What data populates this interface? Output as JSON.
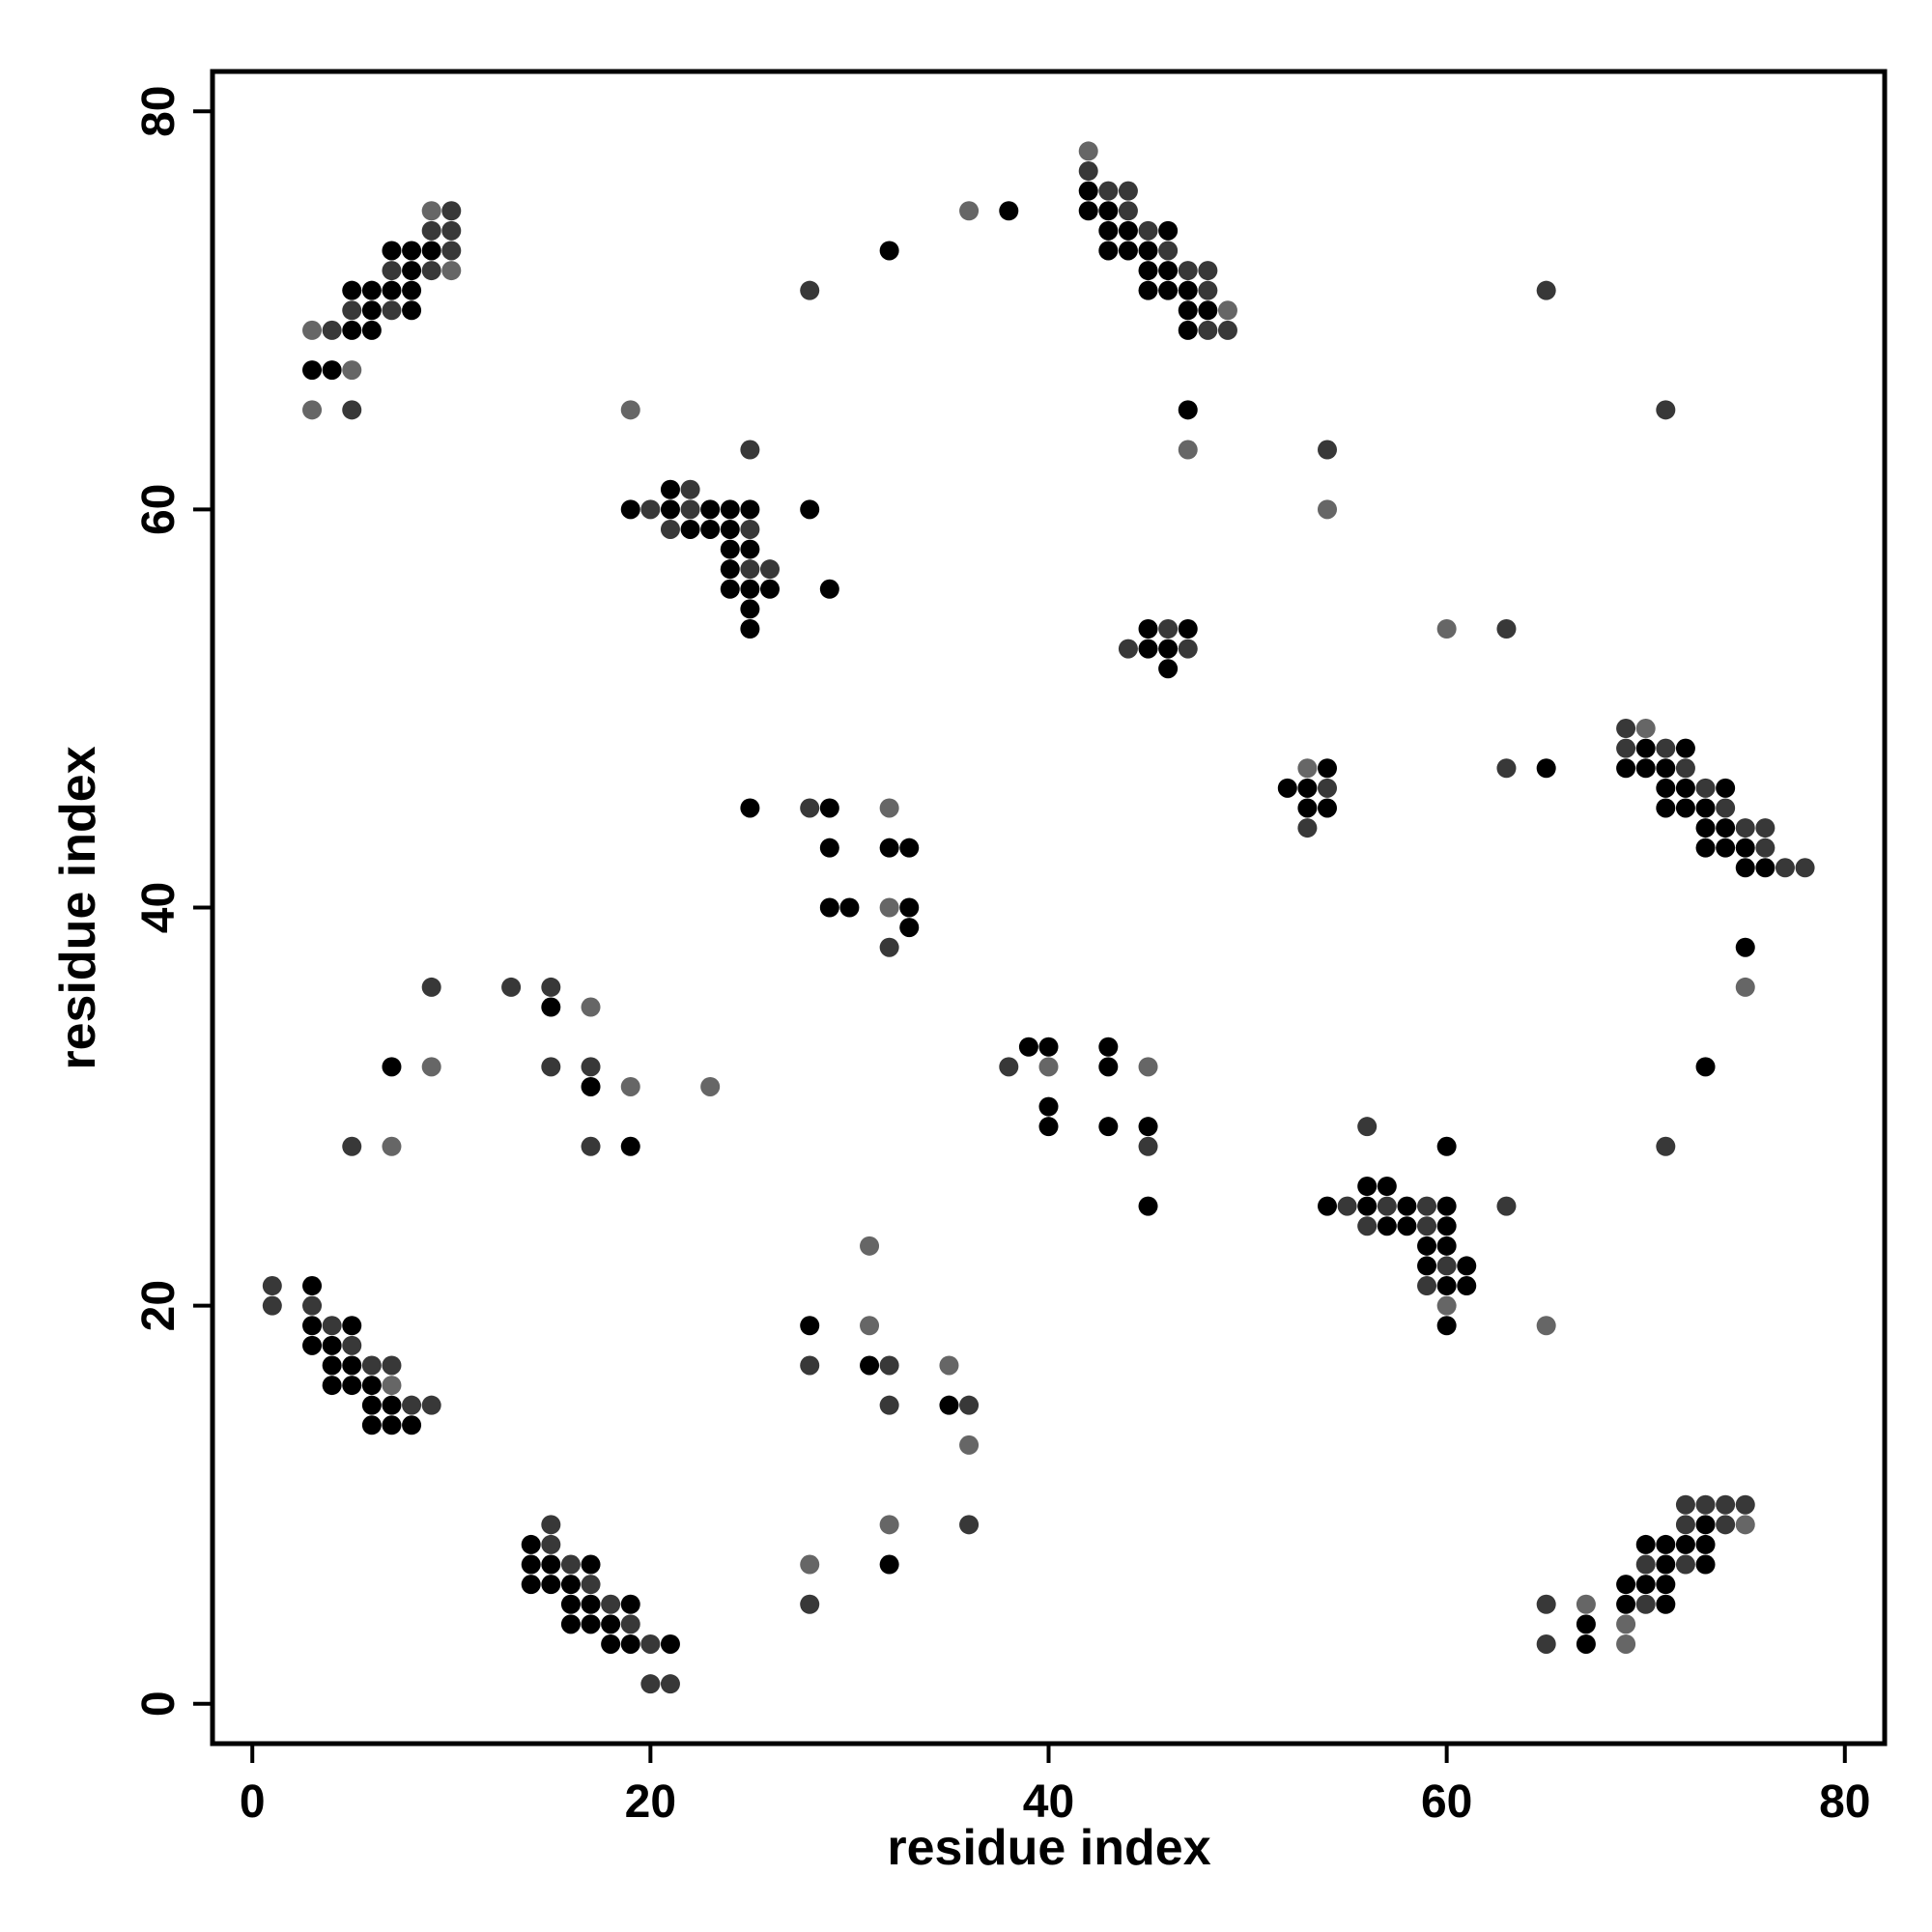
{
  "chart_data": {
    "type": "scatter",
    "x_label": "residue index",
    "y_label": "residue index",
    "xlim": [
      -2,
      82
    ],
    "ylim": [
      -2,
      82
    ],
    "xticks": [
      0,
      20,
      40,
      60,
      80
    ],
    "yticks": [
      0,
      20,
      40,
      60,
      80
    ],
    "grid": false,
    "series": [
      {
        "color": "#000000",
        "x": [
          7,
          8,
          9,
          8,
          5,
          6,
          7,
          8,
          6,
          8,
          5,
          6,
          3,
          4,
          32,
          38,
          42,
          42,
          43,
          43,
          44,
          46,
          43,
          44,
          45,
          45,
          46,
          45,
          46,
          47,
          47,
          48,
          47,
          47,
          21,
          19,
          21,
          23,
          24,
          25,
          28,
          22,
          23,
          24,
          24,
          25,
          24,
          24,
          25,
          26,
          29,
          25,
          25,
          45,
          47,
          45,
          46,
          46,
          54,
          52,
          53,
          53,
          54,
          65,
          70,
          72,
          69,
          70,
          71,
          71,
          72,
          74,
          71,
          72,
          73,
          73,
          74,
          73,
          74,
          75,
          75,
          76,
          75,
          25,
          29,
          29,
          32,
          33,
          29,
          30,
          33,
          33,
          15,
          7,
          17,
          19,
          39,
          40,
          43,
          43,
          40,
          40,
          43,
          45,
          45,
          73,
          60,
          56,
          57,
          54,
          56,
          58,
          60,
          57,
          58,
          60,
          59,
          60,
          59,
          61,
          60,
          61,
          60,
          3,
          3,
          5,
          3,
          4,
          4,
          5,
          4,
          5,
          6,
          6,
          7,
          6,
          7,
          8,
          28,
          31,
          35,
          32,
          14,
          14,
          15,
          17,
          14,
          15,
          16,
          16,
          17,
          19,
          16,
          17,
          18,
          18,
          19,
          21,
          73,
          70,
          71,
          72,
          73,
          71,
          73,
          69,
          70,
          71,
          69,
          71,
          67,
          67
        ],
        "y": [
          73,
          73,
          73,
          72,
          71,
          71,
          71,
          71,
          70,
          70,
          69,
          69,
          67,
          67,
          73,
          75,
          76,
          75,
          75,
          74,
          74,
          74,
          73,
          73,
          73,
          72,
          72,
          71,
          71,
          71,
          70,
          70,
          69,
          65,
          61,
          60,
          60,
          60,
          60,
          60,
          60,
          59,
          59,
          59,
          58,
          58,
          57,
          56,
          56,
          56,
          56,
          55,
          54,
          54,
          54,
          53,
          53,
          52,
          47,
          46,
          46,
          45,
          45,
          47,
          48,
          48,
          47,
          47,
          47,
          46,
          46,
          46,
          45,
          45,
          45,
          44,
          44,
          43,
          43,
          43,
          42,
          42,
          38,
          45,
          45,
          43,
          43,
          43,
          40,
          40,
          40,
          39,
          35,
          32,
          31,
          28,
          33,
          33,
          33,
          32,
          30,
          29,
          29,
          29,
          25,
          32,
          28,
          26,
          26,
          25,
          25,
          25,
          25,
          24,
          24,
          24,
          23,
          23,
          22,
          22,
          21,
          21,
          19,
          21,
          19,
          19,
          18,
          18,
          17,
          17,
          16,
          16,
          16,
          15,
          15,
          14,
          14,
          14,
          19,
          17,
          15,
          7,
          8,
          7,
          7,
          7,
          6,
          6,
          6,
          5,
          5,
          5,
          4,
          4,
          4,
          3,
          3,
          3,
          9,
          8,
          8,
          8,
          8,
          7,
          7,
          6,
          6,
          6,
          5,
          5,
          4,
          3
        ]
      },
      {
        "color": "#383838",
        "x": [
          10,
          9,
          10,
          10,
          7,
          9,
          5,
          7,
          4,
          5,
          28,
          42,
          43,
          44,
          44,
          45,
          46,
          47,
          48,
          48,
          48,
          49,
          65,
          71,
          54,
          25,
          22,
          20,
          22,
          21,
          25,
          25,
          26,
          46,
          44,
          47,
          63,
          54,
          53,
          63,
          69,
          69,
          71,
          72,
          73,
          74,
          75,
          76,
          76,
          77,
          78,
          28,
          32,
          9,
          13,
          15,
          15,
          17,
          5,
          17,
          38,
          45,
          71,
          56,
          55,
          57,
          59,
          63,
          56,
          59,
          60,
          59,
          1,
          1,
          3,
          4,
          5,
          6,
          7,
          8,
          9,
          28,
          32,
          32,
          36,
          36,
          28,
          15,
          15,
          16,
          17,
          18,
          19,
          20,
          20,
          21,
          72,
          73,
          74,
          75,
          72,
          74,
          70,
          72,
          65,
          70,
          65
        ],
        "y": [
          75,
          74,
          74,
          73,
          72,
          72,
          70,
          70,
          69,
          65,
          71,
          77,
          76,
          76,
          75,
          74,
          73,
          72,
          72,
          71,
          69,
          69,
          71,
          65,
          63,
          63,
          61,
          60,
          60,
          59,
          59,
          57,
          57,
          54,
          53,
          53,
          54,
          46,
          44,
          47,
          49,
          48,
          48,
          47,
          46,
          45,
          44,
          44,
          43,
          42,
          42,
          45,
          38,
          36,
          36,
          36,
          32,
          32,
          28,
          28,
          32,
          28,
          28,
          29,
          25,
          25,
          25,
          25,
          24,
          24,
          22,
          21,
          21,
          20,
          20,
          19,
          18,
          17,
          17,
          15,
          15,
          17,
          17,
          15,
          15,
          9,
          5,
          9,
          8,
          7,
          6,
          5,
          4,
          3,
          1,
          1,
          10,
          10,
          10,
          10,
          9,
          9,
          7,
          7,
          5,
          5,
          3
        ]
      },
      {
        "color": "#666666",
        "x": [
          9,
          10,
          3,
          5,
          3,
          36,
          42,
          49,
          47,
          54,
          19,
          60,
          53,
          70,
          75,
          32,
          32,
          17,
          9,
          19,
          23,
          7,
          40,
          45,
          60,
          65,
          7,
          31,
          31,
          35,
          36,
          32,
          28,
          75,
          67,
          69,
          69
        ],
        "y": [
          75,
          72,
          69,
          67,
          65,
          75,
          78,
          70,
          63,
          60,
          65,
          54,
          47,
          49,
          36,
          45,
          40,
          35,
          32,
          31,
          31,
          28,
          32,
          32,
          20,
          19,
          16,
          23,
          19,
          17,
          13,
          9,
          7,
          9,
          5,
          4,
          3
        ]
      }
    ]
  }
}
